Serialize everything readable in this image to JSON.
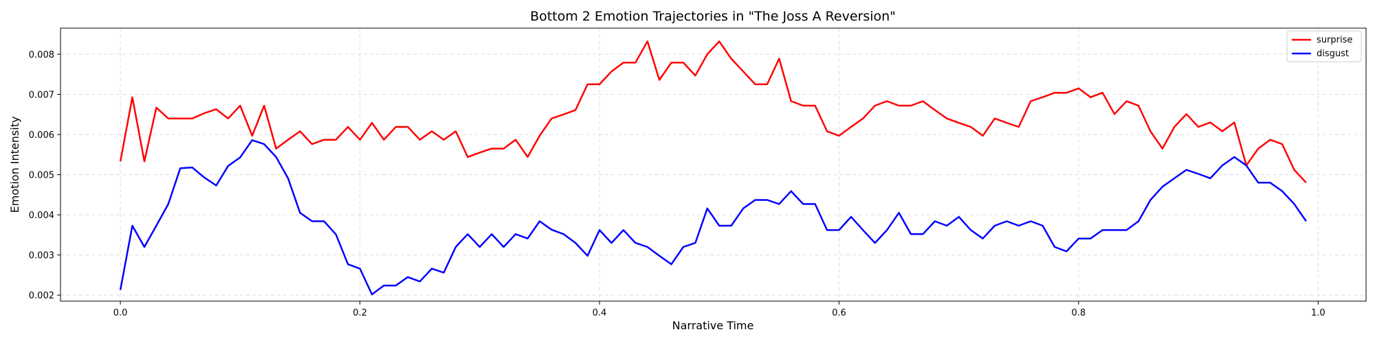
{
  "chart_data": {
    "type": "line",
    "title": "Bottom 2 Emotion Trajectories in \"The Joss A Reversion\"",
    "xlabel": "Narrative Time",
    "ylabel": "Emotion Intensity",
    "xlim": [
      -0.05,
      1.04
    ],
    "ylim": [
      0.00185,
      0.00865
    ],
    "xticks": [
      0.0,
      0.2,
      0.4,
      0.6,
      0.8,
      1.0
    ],
    "xtick_labels": [
      "0.0",
      "0.2",
      "0.4",
      "0.6",
      "0.8",
      "1.0"
    ],
    "yticks": [
      0.002,
      0.003,
      0.004,
      0.005,
      0.006,
      0.007,
      0.008
    ],
    "ytick_labels": [
      "0.002",
      "0.003",
      "0.004",
      "0.005",
      "0.006",
      "0.007",
      "0.008"
    ],
    "grid": true,
    "legend_position": "top-right",
    "x": [
      0.0,
      0.01,
      0.02,
      0.03,
      0.04,
      0.05,
      0.06,
      0.07,
      0.08,
      0.09,
      0.1,
      0.11,
      0.12,
      0.13,
      0.14,
      0.15,
      0.16,
      0.17,
      0.18,
      0.19,
      0.2,
      0.21,
      0.22,
      0.23,
      0.24,
      0.25,
      0.26,
      0.27,
      0.28,
      0.29,
      0.3,
      0.31,
      0.32,
      0.33,
      0.34,
      0.35,
      0.36,
      0.37,
      0.38,
      0.39,
      0.4,
      0.41,
      0.42,
      0.43,
      0.44,
      0.45,
      0.46,
      0.47,
      0.48,
      0.49,
      0.5,
      0.51,
      0.52,
      0.53,
      0.54,
      0.55,
      0.56,
      0.57,
      0.58,
      0.59,
      0.6,
      0.61,
      0.62,
      0.63,
      0.64,
      0.65,
      0.66,
      0.67,
      0.68,
      0.69,
      0.7,
      0.71,
      0.72,
      0.73,
      0.74,
      0.75,
      0.76,
      0.77,
      0.78,
      0.79,
      0.8,
      0.81,
      0.82,
      0.83,
      0.84,
      0.85,
      0.86,
      0.87,
      0.88,
      0.89,
      0.9,
      0.91,
      0.92,
      0.93,
      0.94,
      0.95,
      0.96,
      0.97,
      0.98,
      0.99
    ],
    "series": [
      {
        "name": "surprise",
        "color": "#ff0000",
        "values": [
          0.00533,
          0.00693,
          0.00533,
          0.00667,
          0.0064,
          0.0064,
          0.0064,
          0.00653,
          0.00663,
          0.0064,
          0.00672,
          0.00597,
          0.00672,
          0.00565,
          0.00587,
          0.00608,
          0.00576,
          0.00587,
          0.00587,
          0.00619,
          0.00587,
          0.00629,
          0.00587,
          0.00619,
          0.00619,
          0.00587,
          0.00608,
          0.00587,
          0.00608,
          0.00544,
          0.00555,
          0.00565,
          0.00565,
          0.00587,
          0.00544,
          0.00597,
          0.0064,
          0.0065,
          0.00661,
          0.00725,
          0.00725,
          0.00757,
          0.00779,
          0.00779,
          0.00832,
          0.00736,
          0.00779,
          0.00779,
          0.00747,
          0.008,
          0.00832,
          0.00789,
          0.00757,
          0.00725,
          0.00725,
          0.00789,
          0.00683,
          0.00672,
          0.00672,
          0.00608,
          0.00597,
          0.00619,
          0.0064,
          0.00672,
          0.00683,
          0.00672,
          0.00672,
          0.00683,
          0.00661,
          0.0064,
          0.00629,
          0.00619,
          0.00597,
          0.0064,
          0.00629,
          0.00619,
          0.00683,
          0.00693,
          0.00704,
          0.00704,
          0.00715,
          0.00693,
          0.00704,
          0.00651,
          0.00683,
          0.00672,
          0.00608,
          0.00565,
          0.00619,
          0.00651,
          0.00619,
          0.0063,
          0.00608,
          0.0063,
          0.00523,
          0.00565,
          0.00587,
          0.00576,
          0.00512,
          0.0048
        ]
      },
      {
        "name": "disgust",
        "color": "#0000ff",
        "values": [
          0.00213,
          0.00373,
          0.0032,
          0.00373,
          0.00427,
          0.00516,
          0.00518,
          0.00493,
          0.00473,
          0.00522,
          0.00543,
          0.00586,
          0.00576,
          0.00544,
          0.00491,
          0.00405,
          0.00384,
          0.00384,
          0.00351,
          0.00277,
          0.00266,
          0.00202,
          0.00224,
          0.00224,
          0.00245,
          0.00234,
          0.00266,
          0.00256,
          0.0032,
          0.00352,
          0.0032,
          0.00352,
          0.0032,
          0.00352,
          0.00341,
          0.00384,
          0.00363,
          0.00352,
          0.0033,
          0.00298,
          0.00362,
          0.0033,
          0.00362,
          0.0033,
          0.0032,
          0.00298,
          0.00277,
          0.0032,
          0.0033,
          0.00416,
          0.00373,
          0.00373,
          0.00416,
          0.00437,
          0.00437,
          0.00427,
          0.00459,
          0.00427,
          0.00427,
          0.00362,
          0.00362,
          0.00395,
          0.00362,
          0.0033,
          0.00362,
          0.00405,
          0.00352,
          0.00352,
          0.00384,
          0.00373,
          0.00395,
          0.00362,
          0.00341,
          0.00373,
          0.00384,
          0.00373,
          0.00384,
          0.00373,
          0.0032,
          0.00309,
          0.00341,
          0.00341,
          0.00362,
          0.00362,
          0.00362,
          0.00384,
          0.00437,
          0.0047,
          0.00491,
          0.00512,
          0.00502,
          0.00491,
          0.00523,
          0.00544,
          0.00523,
          0.0048,
          0.0048,
          0.00459,
          0.00427,
          0.00384
        ]
      }
    ]
  }
}
